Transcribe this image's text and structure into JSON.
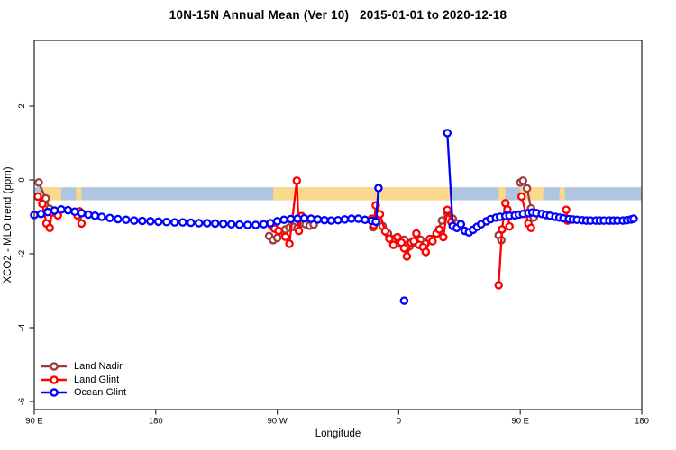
{
  "chart_data": {
    "type": "line",
    "title": "10N-15N Annual Mean (Ver 10)   2015-01-01 to 2020-12-18",
    "xlabel": "Longitude",
    "ylabel": "XCO2 - MLO trend (ppm)",
    "frame_color": "#303030",
    "x_axis": {
      "min": 0,
      "max": 450,
      "note": "axis degrees east of 90E, wrapping around the globe",
      "ticks": [
        {
          "pos": 0,
          "label": "90 E"
        },
        {
          "pos": 90,
          "label": "180"
        },
        {
          "pos": 180,
          "label": "90 W"
        },
        {
          "pos": 270,
          "label": "0"
        },
        {
          "pos": 360,
          "label": "90 E"
        },
        {
          "pos": 450,
          "label": "180"
        }
      ]
    },
    "y_axis": {
      "min": -6.2,
      "max": 3.8,
      "ticks": [
        {
          "pos": 2,
          "label": "2"
        },
        {
          "pos": 0,
          "label": "0"
        },
        {
          "pos": -2,
          "label": "-2"
        },
        {
          "pos": -4,
          "label": "-4"
        },
        {
          "pos": -6,
          "label": "-6"
        }
      ]
    },
    "band": {
      "y_from": -0.2,
      "y_to": -0.55,
      "color": "#B0C5DF",
      "orange_color": "#FAD88C",
      "orange_segments": [
        [
          5,
          20
        ],
        [
          31,
          35
        ],
        [
          177,
          309
        ],
        [
          344,
          349
        ],
        [
          360,
          377
        ],
        [
          389,
          393
        ]
      ]
    },
    "series": [
      {
        "name": "Land Nadir",
        "color": "#9E3B3B",
        "segments": [
          [
            [
              3.3,
              -0.07
            ],
            [
              8.5,
              -0.5
            ],
            [
              11.3,
              -0.78
            ],
            [
              14.7,
              -0.88
            ]
          ],
          [
            [
              174,
              -1.52
            ],
            [
              177,
              -1.63
            ],
            [
              180,
              -1.57
            ],
            [
              183,
              -1.44
            ],
            [
              186,
              -1.34
            ],
            [
              189,
              -1.29
            ],
            [
              192,
              -1.27
            ],
            [
              195,
              -1.3
            ],
            [
              198,
              -1.17
            ],
            [
              201,
              -1.2
            ],
            [
              204,
              -1.24
            ],
            [
              207,
              -1.21
            ]
          ],
          [
            [
              251,
              -1.28
            ],
            [
              254,
              -1.05
            ],
            [
              258,
              -1.25
            ],
            [
              262,
              -1.45
            ],
            [
              266,
              -1.6
            ],
            [
              270,
              -1.72
            ],
            [
              274,
              -1.62
            ],
            [
              278,
              -1.8
            ],
            [
              282,
              -1.7
            ],
            [
              286,
              -1.62
            ],
            [
              290,
              -1.72
            ],
            [
              294,
              -1.6
            ],
            [
              298,
              -1.45
            ],
            [
              302,
              -1.1
            ],
            [
              306,
              -0.88
            ],
            [
              310,
              -1.05
            ],
            [
              313,
              -1.18
            ]
          ],
          [
            [
              344,
              -1.5
            ],
            [
              346,
              -1.63
            ]
          ],
          [
            [
              360,
              -0.07
            ],
            [
              362,
              -0.02
            ],
            [
              365,
              -0.23
            ],
            [
              368,
              -0.77
            ],
            [
              370,
              -1.02
            ]
          ]
        ]
      },
      {
        "name": "Land Glint",
        "color": "#FF0000",
        "segments": [
          [
            [
              2.7,
              -0.45
            ],
            [
              6,
              -0.65
            ],
            [
              9,
              -1.18
            ],
            [
              11.5,
              -1.3
            ],
            [
              13,
              -0.88
            ],
            [
              17.5,
              -0.96
            ]
          ],
          [
            [
              32,
              -0.96
            ],
            [
              33.5,
              -0.85
            ],
            [
              35,
              -1.18
            ]
          ],
          [
            [
              176,
              -1.25
            ],
            [
              178,
              -1.32
            ],
            [
              181,
              -1.38
            ],
            [
              186,
              -1.54
            ],
            [
              189,
              -1.73
            ],
            [
              194.5,
              -0.02
            ],
            [
              196,
              -1.38
            ],
            [
              198,
              -0.98
            ]
          ],
          [
            [
              250,
              -1.05
            ],
            [
              251.5,
              -1.22
            ],
            [
              253,
              -0.69
            ],
            [
              256,
              -0.93
            ],
            [
              260,
              -1.39
            ],
            [
              263,
              -1.59
            ],
            [
              266,
              -1.76
            ],
            [
              269,
              -1.55
            ],
            [
              272,
              -1.7
            ],
            [
              274,
              -1.85
            ],
            [
              276,
              -2.07
            ],
            [
              279,
              -1.7
            ],
            [
              281,
              -1.66
            ],
            [
              283,
              -1.45
            ],
            [
              285,
              -1.76
            ],
            [
              288,
              -1.82
            ],
            [
              290,
              -1.95
            ],
            [
              293,
              -1.6
            ],
            [
              295,
              -1.66
            ],
            [
              298,
              -1.45
            ],
            [
              300,
              -1.34
            ],
            [
              303,
              -1.55
            ],
            [
              306,
              -0.81
            ],
            [
              309,
              -1.14
            ]
          ],
          [
            [
              344,
              -2.85
            ],
            [
              346.5,
              -1.34
            ],
            [
              349,
              -0.63
            ],
            [
              350.5,
              -0.8
            ],
            [
              352,
              -1.26
            ]
          ],
          [
            [
              361,
              -0.45
            ],
            [
              366,
              -1.18
            ],
            [
              368,
              -1.3
            ]
          ],
          [
            [
              394,
              -0.81
            ],
            [
              395,
              -1.1
            ]
          ]
        ]
      },
      {
        "name": "Ocean Glint",
        "color": "#0000FF",
        "segments": [
          [
            [
              0,
              -0.95
            ],
            [
              5,
              -0.92
            ],
            [
              10,
              -0.87
            ],
            [
              15,
              -0.83
            ],
            [
              20,
              -0.8
            ],
            [
              25,
              -0.82
            ],
            [
              30,
              -0.86
            ],
            [
              35,
              -0.9
            ],
            [
              40,
              -0.94
            ],
            [
              45,
              -0.97
            ],
            [
              50,
              -1.0
            ],
            [
              56,
              -1.03
            ],
            [
              62,
              -1.06
            ],
            [
              68,
              -1.08
            ],
            [
              74,
              -1.1
            ],
            [
              80,
              -1.11
            ],
            [
              86,
              -1.12
            ],
            [
              92,
              -1.13
            ],
            [
              98,
              -1.14
            ],
            [
              104,
              -1.15
            ],
            [
              110,
              -1.15
            ],
            [
              116,
              -1.16
            ],
            [
              122,
              -1.17
            ],
            [
              128,
              -1.17
            ],
            [
              134,
              -1.18
            ],
            [
              140,
              -1.19
            ],
            [
              146,
              -1.2
            ],
            [
              152,
              -1.21
            ],
            [
              158,
              -1.22
            ],
            [
              164,
              -1.22
            ],
            [
              170,
              -1.2
            ],
            [
              175,
              -1.17
            ],
            [
              180,
              -1.12
            ],
            [
              185,
              -1.08
            ],
            [
              190,
              -1.06
            ],
            [
              195,
              -1.05
            ],
            [
              200,
              -1.04
            ],
            [
              205,
              -1.05
            ],
            [
              210,
              -1.07
            ],
            [
              215,
              -1.09
            ],
            [
              220,
              -1.1
            ],
            [
              225,
              -1.09
            ],
            [
              230,
              -1.07
            ],
            [
              235,
              -1.05
            ],
            [
              240,
              -1.05
            ],
            [
              245,
              -1.08
            ],
            [
              250,
              -1.11
            ],
            [
              253,
              -1.13
            ],
            [
              255,
              -0.22
            ]
          ],
          [
            [
              274,
              -3.27
            ]
          ],
          [
            [
              306,
              1.27
            ],
            [
              310,
              -1.25
            ],
            [
              313,
              -1.3
            ],
            [
              316,
              -1.2
            ],
            [
              319,
              -1.38
            ],
            [
              322,
              -1.42
            ],
            [
              325,
              -1.35
            ],
            [
              328,
              -1.27
            ],
            [
              331,
              -1.2
            ],
            [
              335,
              -1.12
            ],
            [
              338,
              -1.06
            ],
            [
              342,
              -1.02
            ],
            [
              345,
              -1.0
            ],
            [
              349,
              -0.98
            ],
            [
              352,
              -0.97
            ],
            [
              356,
              -0.96
            ],
            [
              359,
              -0.94
            ],
            [
              362,
              -0.92
            ],
            [
              366,
              -0.9
            ],
            [
              369,
              -0.88
            ],
            [
              372,
              -0.9
            ],
            [
              376,
              -0.92
            ],
            [
              379,
              -0.95
            ],
            [
              382,
              -0.97
            ],
            [
              386,
              -1.0
            ],
            [
              389,
              -1.02
            ],
            [
              392,
              -1.04
            ],
            [
              396,
              -1.06
            ],
            [
              399,
              -1.07
            ],
            [
              402,
              -1.08
            ],
            [
              406,
              -1.09
            ],
            [
              409,
              -1.1
            ],
            [
              412,
              -1.1
            ],
            [
              416,
              -1.1
            ],
            [
              419,
              -1.1
            ],
            [
              422,
              -1.1
            ],
            [
              426,
              -1.1
            ],
            [
              429,
              -1.1
            ],
            [
              432,
              -1.1
            ],
            [
              436,
              -1.1
            ],
            [
              439,
              -1.09
            ],
            [
              442,
              -1.07
            ],
            [
              444,
              -1.05
            ]
          ]
        ]
      }
    ],
    "legend": {
      "items": [
        {
          "label": "Land Nadir"
        },
        {
          "label": "Land Glint"
        },
        {
          "label": "Ocean Glint"
        }
      ]
    }
  }
}
